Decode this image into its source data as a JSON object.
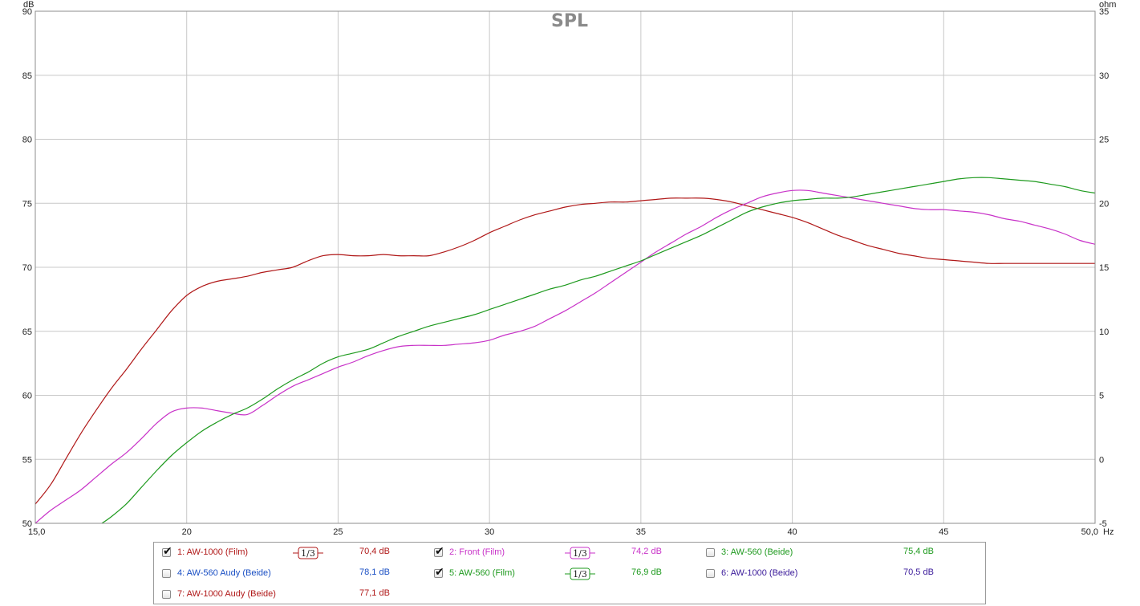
{
  "chart_data": {
    "type": "line",
    "title": "SPL",
    "y_unit": "dB",
    "y2_unit": "ohm",
    "x_unit": "Hz",
    "xlim": [
      15,
      50
    ],
    "ylim": [
      50,
      90
    ],
    "y2lim": [
      -5,
      35
    ],
    "grid": true,
    "x_ticks": [
      15,
      20,
      25,
      30,
      35,
      40,
      45,
      50
    ],
    "x_tick_labels": [
      "15,0",
      "20",
      "25",
      "30",
      "35",
      "40",
      "45",
      "50,0"
    ],
    "y_ticks": [
      50,
      55,
      60,
      65,
      70,
      75,
      80,
      85,
      90
    ],
    "y2_ticks": [
      -5,
      0,
      5,
      10,
      15,
      20,
      25,
      30,
      35
    ],
    "series": [
      {
        "name": "1: AW-1000 (Film)",
        "color": "#b01818",
        "x": [
          15,
          15.5,
          16,
          16.5,
          17,
          17.5,
          18,
          18.5,
          19,
          19.5,
          20,
          20.5,
          21,
          21.5,
          22,
          22.5,
          23,
          23.5,
          24,
          24.5,
          25,
          25.5,
          26,
          26.5,
          27,
          27.5,
          28,
          28.5,
          29,
          29.5,
          30,
          30.5,
          31,
          31.5,
          32,
          32.5,
          33,
          33.5,
          34,
          34.5,
          35,
          35.5,
          36,
          36.5,
          37,
          37.5,
          38,
          38.5,
          39,
          39.5,
          40,
          40.5,
          41,
          41.5,
          42,
          42.5,
          43,
          43.5,
          44,
          44.5,
          45,
          45.5,
          46,
          46.5,
          47,
          47.5,
          48,
          48.5,
          49,
          49.5,
          50
        ],
        "values": [
          51.5,
          53,
          55,
          57,
          58.8,
          60.5,
          62,
          63.6,
          65.1,
          66.6,
          67.8,
          68.5,
          68.9,
          69.1,
          69.3,
          69.6,
          69.8,
          70,
          70.5,
          70.9,
          71,
          70.9,
          70.9,
          71,
          70.9,
          70.9,
          70.9,
          71.2,
          71.6,
          72.1,
          72.7,
          73.2,
          73.7,
          74.1,
          74.4,
          74.7,
          74.9,
          75,
          75.1,
          75.1,
          75.2,
          75.3,
          75.4,
          75.4,
          75.4,
          75.3,
          75.1,
          74.8,
          74.5,
          74.2,
          73.9,
          73.5,
          73,
          72.5,
          72.1,
          71.7,
          71.4,
          71.1,
          70.9,
          70.7,
          70.6,
          70.5,
          70.4,
          70.3,
          70.3,
          70.3,
          70.3,
          70.3,
          70.3,
          70.3,
          70.3
        ]
      },
      {
        "name": "2: Front (Film)",
        "color": "#c832c8",
        "x": [
          15,
          15.5,
          16,
          16.5,
          17,
          17.5,
          18,
          18.5,
          19,
          19.5,
          20,
          20.5,
          21,
          21.5,
          22,
          22.5,
          23,
          23.5,
          24,
          24.5,
          25,
          25.5,
          26,
          26.5,
          27,
          27.5,
          28,
          28.5,
          29,
          29.5,
          30,
          30.5,
          31,
          31.5,
          32,
          32.5,
          33,
          33.5,
          34,
          34.5,
          35,
          35.5,
          36,
          36.5,
          37,
          37.5,
          38,
          38.5,
          39,
          39.5,
          40,
          40.5,
          41,
          41.5,
          42,
          42.5,
          43,
          43.5,
          44,
          44.5,
          45,
          45.5,
          46,
          46.5,
          47,
          47.5,
          48,
          48.5,
          49,
          49.5,
          50
        ],
        "values": [
          50,
          51,
          51.8,
          52.6,
          53.6,
          54.6,
          55.5,
          56.6,
          57.8,
          58.7,
          59,
          59,
          58.8,
          58.6,
          58.5,
          59.2,
          60,
          60.7,
          61.2,
          61.7,
          62.2,
          62.6,
          63.1,
          63.5,
          63.8,
          63.9,
          63.9,
          63.9,
          64,
          64.1,
          64.3,
          64.7,
          65,
          65.4,
          66,
          66.6,
          67.3,
          68,
          68.8,
          69.6,
          70.4,
          71.2,
          71.9,
          72.6,
          73.2,
          73.9,
          74.5,
          75,
          75.5,
          75.8,
          76,
          76,
          75.8,
          75.6,
          75.4,
          75.2,
          75,
          74.8,
          74.6,
          74.5,
          74.5,
          74.4,
          74.3,
          74.1,
          73.8,
          73.6,
          73.3,
          73,
          72.6,
          72.1,
          71.8
        ]
      },
      {
        "name": "5: AW-560 (Film)",
        "color": "#1e9a1e",
        "x": [
          17.2,
          17.5,
          18,
          18.5,
          19,
          19.5,
          20,
          20.5,
          21,
          21.5,
          22,
          22.5,
          23,
          23.5,
          24,
          24.5,
          25,
          25.5,
          26,
          26.5,
          27,
          27.5,
          28,
          28.5,
          29,
          29.5,
          30,
          30.5,
          31,
          31.5,
          32,
          32.5,
          33,
          33.5,
          34,
          34.5,
          35,
          35.5,
          36,
          36.5,
          37,
          37.5,
          38,
          38.5,
          39,
          39.5,
          40,
          40.5,
          41,
          41.5,
          42,
          42.5,
          43,
          43.5,
          44,
          44.5,
          45,
          45.5,
          46,
          46.5,
          47,
          47.5,
          48,
          48.5,
          49,
          49.5,
          50
        ],
        "values": [
          50,
          50.5,
          51.5,
          52.8,
          54.1,
          55.3,
          56.3,
          57.2,
          57.9,
          58.5,
          59,
          59.7,
          60.5,
          61.2,
          61.8,
          62.5,
          63,
          63.3,
          63.6,
          64.1,
          64.6,
          65,
          65.4,
          65.7,
          66,
          66.3,
          66.7,
          67.1,
          67.5,
          67.9,
          68.3,
          68.6,
          69,
          69.3,
          69.7,
          70.1,
          70.5,
          71,
          71.5,
          72,
          72.5,
          73.1,
          73.7,
          74.3,
          74.7,
          75,
          75.2,
          75.3,
          75.4,
          75.4,
          75.5,
          75.7,
          75.9,
          76.1,
          76.3,
          76.5,
          76.7,
          76.9,
          77,
          77,
          76.9,
          76.8,
          76.7,
          76.5,
          76.3,
          76,
          75.8
        ]
      }
    ]
  },
  "legend": {
    "items": [
      {
        "label": "1: AW-1000 (Film)",
        "checked": true,
        "color": "#b01818",
        "value": "70,4 dB",
        "smoothing": "1/3"
      },
      {
        "label": "2: Front (Film)",
        "checked": true,
        "color": "#c832c8",
        "value": "74,2 dB",
        "smoothing": "1/3"
      },
      {
        "label": "3: AW-560 (Beide)",
        "checked": false,
        "color": "#1e9a1e",
        "value": "75,4 dB"
      },
      {
        "label": "4: AW-560 Audy (Beide)",
        "checked": false,
        "color": "#1a4fc4",
        "value": "78,1 dB"
      },
      {
        "label": "5: AW-560 (Film)",
        "checked": true,
        "color": "#1e9a1e",
        "value": "76,9 dB",
        "smoothing": "1/3"
      },
      {
        "label": "6: AW-1000 (Beide)",
        "checked": false,
        "color": "#3a1a9a",
        "value": "70,5 dB"
      },
      {
        "label": "7: AW-1000 Audy (Beide)",
        "checked": false,
        "color": "#b01818",
        "value": "77,1 dB"
      }
    ]
  }
}
